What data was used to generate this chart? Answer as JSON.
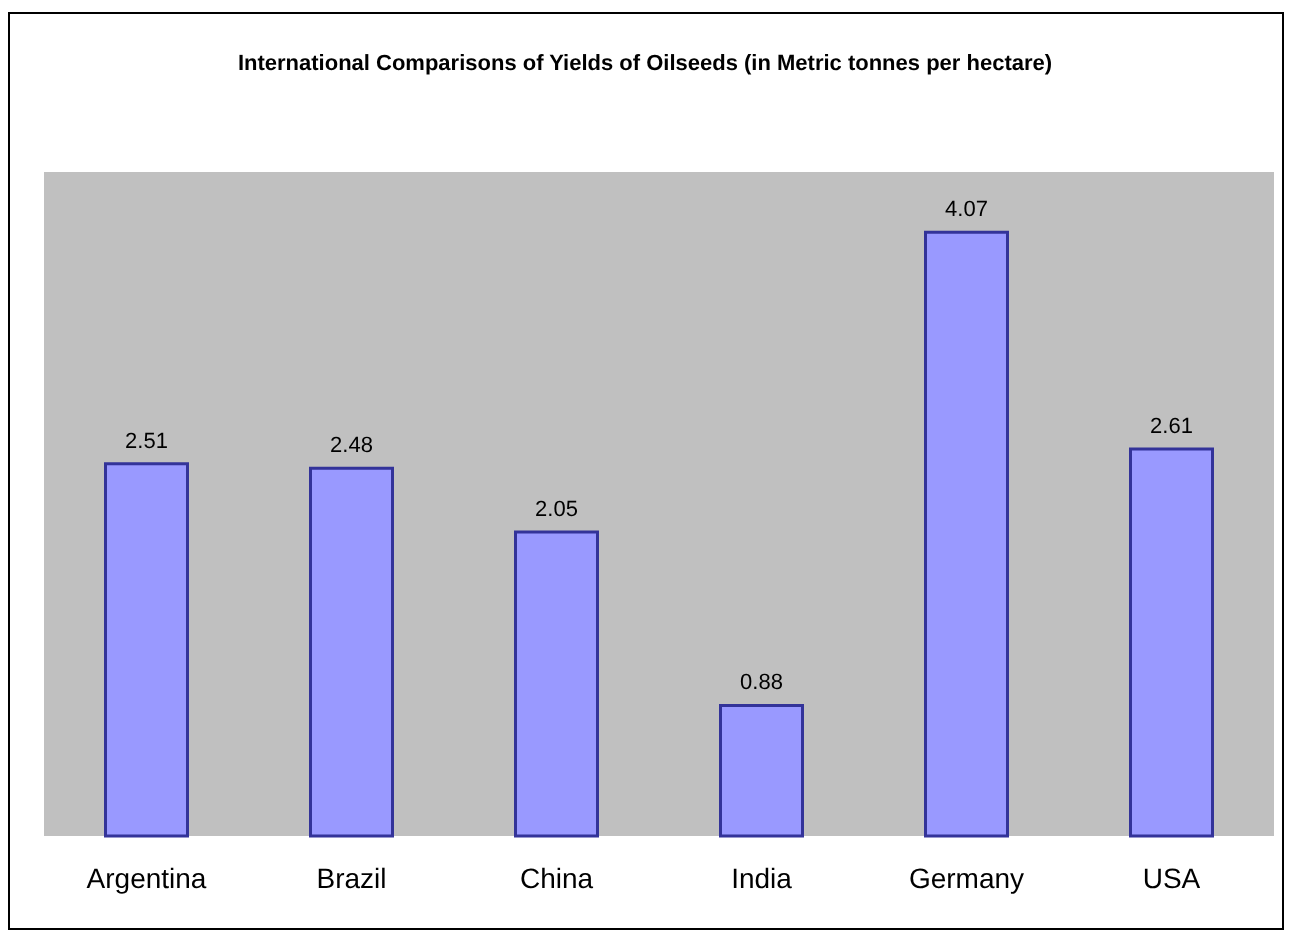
{
  "chart_data": {
    "type": "bar",
    "title": "International Comparisons of Yields of Oilseeds (in Metric tonnes per hectare)",
    "categories": [
      "Argentina",
      "Brazil",
      "China",
      "India",
      "Germany",
      "USA"
    ],
    "values": [
      2.51,
      2.48,
      2.05,
      0.88,
      4.07,
      2.61
    ],
    "color": "#9999ff",
    "data_labels": true
  }
}
